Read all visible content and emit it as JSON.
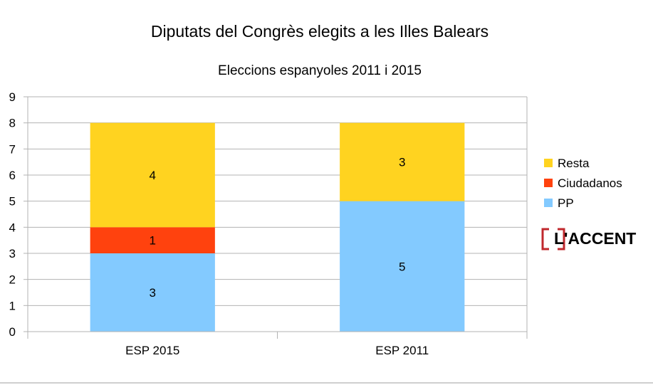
{
  "chart_data": {
    "type": "bar",
    "stacked": true,
    "title": "Diputats del Congrès elegits a les Illes Balears",
    "subtitle": "Eleccions espanyoles 2011 i 2015",
    "categories": [
      "ESP 2015",
      "ESP 2011"
    ],
    "series": [
      {
        "name": "PP",
        "values": [
          3,
          5
        ],
        "color": "#83caff"
      },
      {
        "name": "Ciudadanos",
        "values": [
          1,
          0
        ],
        "color": "#ff420e"
      },
      {
        "name": "Resta",
        "values": [
          4,
          3
        ],
        "color": "#ffd320"
      }
    ],
    "legend_order": [
      "Resta",
      "Ciudadanos",
      "PP"
    ],
    "ylim": [
      0,
      9
    ],
    "yticks": [
      "0",
      "1",
      "2",
      "3",
      "4",
      "5",
      "6",
      "7",
      "8",
      "9"
    ],
    "grid": true,
    "legend_position": "right"
  },
  "logo": {
    "text": "L'ACCENT",
    "accent_color": "#c0282d"
  }
}
